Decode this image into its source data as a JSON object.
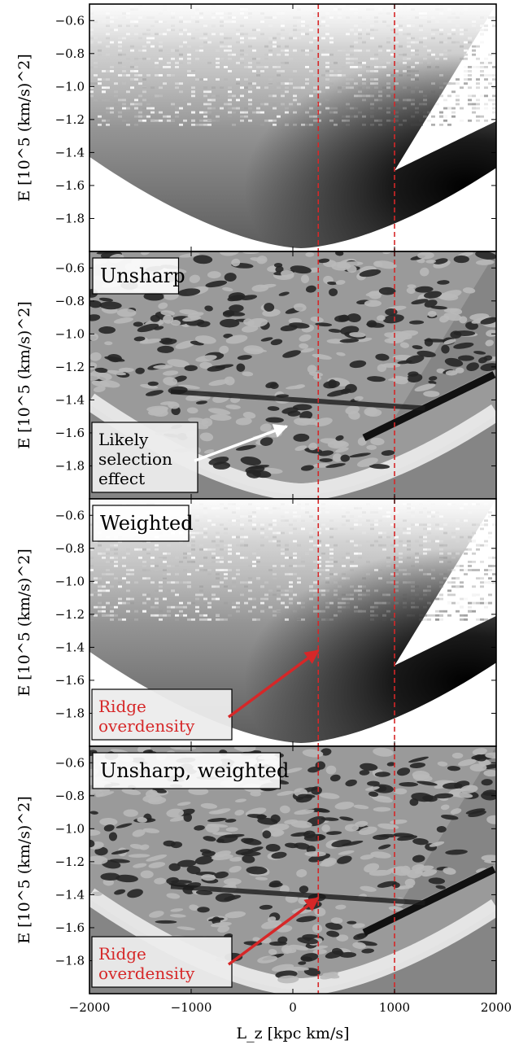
{
  "chart_data": {
    "type": "heatmap",
    "xlabel": "L_z [kpc km/s]",
    "ylabel": "E [10^5 (km/s)^2]",
    "xlim": [
      -2000,
      2000
    ],
    "ylim": [
      -2.0,
      -0.5
    ],
    "x_ticks": [
      -2000,
      -1000,
      0,
      1000,
      2000
    ],
    "x_tick_labels": [
      "−2000",
      "−1000",
      "0",
      "1000",
      "2000"
    ],
    "y_ticks": [
      -0.6,
      -0.8,
      -1.0,
      -1.2,
      -1.4,
      -1.6,
      -1.8
    ],
    "y_tick_labels": [
      "−0.6",
      "−0.8",
      "−1.0",
      "−1.2",
      "−1.4",
      "−1.6",
      "−1.8"
    ],
    "reference_lines_x": [
      250,
      1000
    ],
    "reference_line_color": "#d62728",
    "panels": [
      {
        "label": "",
        "style": "density",
        "annotation": null
      },
      {
        "label": "Unsharp",
        "style": "unsharp",
        "annotation": {
          "lines": [
            "Likely",
            "selection",
            "effect"
          ],
          "color": "#000000",
          "arrow_color": "#ffffff",
          "arrow_to": [
            -60,
            -1.56
          ]
        }
      },
      {
        "label": "Weighted",
        "style": "density",
        "annotation": {
          "lines": [
            "Ridge",
            "overdensity"
          ],
          "color": "#d62728",
          "arrow_color": "#d62728",
          "arrow_to": [
            250,
            -1.42
          ]
        }
      },
      {
        "label": "Unsharp, weighted",
        "style": "unsharp",
        "annotation": {
          "lines": [
            "Ridge",
            "overdensity"
          ],
          "color": "#d62728",
          "arrow_color": "#d62728",
          "arrow_to": [
            250,
            -1.42
          ]
        }
      }
    ]
  }
}
